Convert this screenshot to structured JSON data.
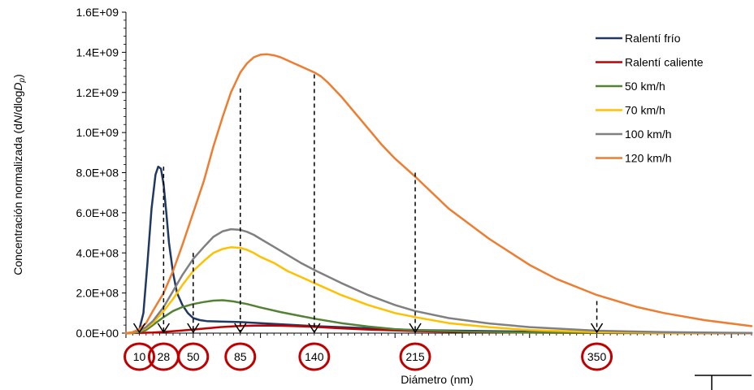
{
  "chart_data": {
    "type": "line",
    "title": "",
    "xlabel": "Diámetro (nm)",
    "ylabel_prefix": "Concentración  normalizada (d",
    "ylabel_N": "N",
    "ylabel_mid": "/dlog",
    "ylabel_D": "D",
    "ylabel_p": "p",
    "ylabel_suffix": ")",
    "ylim": [
      0,
      1600000000
    ],
    "yticks": [
      "0.0E+00",
      "2.0E+08",
      "4.0E+08",
      "6.0E+08",
      "8.0E+08",
      "1.0E+09",
      "1.2E+09",
      "1.4E+09",
      "1.6E+09"
    ],
    "yticks_values": [
      0,
      200000000,
      400000000,
      600000000,
      800000000,
      1000000000,
      1200000000,
      1400000000,
      1600000000
    ],
    "xlim": [
      0,
      465
    ],
    "legend_position": "top-right",
    "series": [
      {
        "name": "Ralentí frío",
        "color": "#203864",
        "x": [
          0,
          4,
          8,
          10,
          13,
          16,
          19,
          22,
          24,
          26,
          28,
          30,
          32,
          35,
          38,
          42,
          46,
          50,
          55,
          60,
          70,
          85,
          100,
          140,
          215,
          350,
          465
        ],
        "y": [
          0,
          1000000,
          5000000,
          20000000,
          100000000,
          350000000,
          620000000,
          790000000,
          830000000,
          820000000,
          740000000,
          600000000,
          450000000,
          300000000,
          200000000,
          140000000,
          100000000,
          75000000,
          65000000,
          60000000,
          58000000,
          55000000,
          50000000,
          35000000,
          15000000,
          3000000,
          1000000
        ]
      },
      {
        "name": "Ralentí caliente",
        "color": "#C00000",
        "x": [
          0,
          10,
          20,
          28,
          40,
          50,
          60,
          70,
          85,
          100,
          115,
          130,
          140,
          160,
          180,
          215,
          260,
          300,
          350,
          465
        ],
        "y": [
          0,
          1000000,
          3000000,
          6000000,
          12000000,
          18000000,
          24000000,
          30000000,
          36000000,
          38000000,
          37000000,
          34000000,
          31000000,
          24000000,
          18000000,
          10000000,
          5000000,
          2500000,
          1000000,
          200000
        ]
      },
      {
        "name": "50 km/h",
        "color": "#548235",
        "x": [
          0,
          5,
          10,
          15,
          20,
          28,
          35,
          42,
          50,
          58,
          65,
          72,
          80,
          90,
          100,
          115,
          130,
          140,
          160,
          180,
          200,
          215,
          250,
          300,
          350,
          465
        ],
        "y": [
          0,
          1000000,
          5000000,
          15000000,
          40000000,
          80000000,
          110000000,
          130000000,
          145000000,
          155000000,
          162000000,
          164000000,
          158000000,
          145000000,
          128000000,
          105000000,
          85000000,
          72000000,
          50000000,
          33000000,
          20000000,
          15000000,
          8000000,
          3000000,
          1500000,
          500000
        ]
      },
      {
        "name": "70 km/h",
        "color": "#FFC000",
        "x": [
          0,
          5,
          10,
          15,
          20,
          28,
          35,
          42,
          50,
          58,
          65,
          72,
          78,
          85,
          90,
          95,
          100,
          110,
          120,
          130,
          140,
          160,
          180,
          200,
          215,
          240,
          270,
          300,
          350,
          400,
          465
        ],
        "y": [
          0,
          2000000,
          10000000,
          25000000,
          50000000,
          110000000,
          170000000,
          240000000,
          310000000,
          360000000,
          400000000,
          420000000,
          428000000,
          425000000,
          415000000,
          400000000,
          380000000,
          350000000,
          310000000,
          280000000,
          250000000,
          190000000,
          140000000,
          100000000,
          80000000,
          50000000,
          30000000,
          15000000,
          5000000,
          2000000,
          500000
        ]
      },
      {
        "name": "100 km/h",
        "color": "#808080",
        "x": [
          0,
          5,
          10,
          15,
          20,
          28,
          35,
          42,
          50,
          58,
          65,
          72,
          78,
          85,
          90,
          95,
          100,
          110,
          120,
          130,
          140,
          160,
          180,
          200,
          215,
          240,
          270,
          300,
          350,
          400,
          465
        ],
        "y": [
          0,
          3000000,
          12000000,
          30000000,
          60000000,
          130000000,
          210000000,
          290000000,
          370000000,
          430000000,
          480000000,
          508000000,
          518000000,
          515000000,
          505000000,
          490000000,
          470000000,
          430000000,
          390000000,
          350000000,
          315000000,
          250000000,
          190000000,
          140000000,
          110000000,
          75000000,
          48000000,
          30000000,
          12000000,
          5000000,
          1000000
        ]
      },
      {
        "name": "120 km/h",
        "color": "#ED7D31",
        "x": [
          0,
          5,
          10,
          15,
          20,
          28,
          35,
          42,
          50,
          58,
          65,
          72,
          78,
          85,
          90,
          95,
          100,
          105,
          110,
          115,
          120,
          125,
          130,
          135,
          140,
          145,
          150,
          160,
          170,
          180,
          190,
          200,
          215,
          240,
          270,
          300,
          320,
          350,
          380,
          400,
          430,
          465
        ],
        "y": [
          0,
          5000000,
          20000000,
          50000000,
          110000000,
          200000000,
          310000000,
          440000000,
          600000000,
          760000000,
          930000000,
          1080000000,
          1200000000,
          1300000000,
          1345000000,
          1375000000,
          1388000000,
          1390000000,
          1385000000,
          1375000000,
          1360000000,
          1345000000,
          1330000000,
          1315000000,
          1300000000,
          1280000000,
          1250000000,
          1180000000,
          1100000000,
          1020000000,
          940000000,
          870000000,
          780000000,
          620000000,
          470000000,
          340000000,
          270000000,
          190000000,
          130000000,
          100000000,
          65000000,
          35000000
        ]
      }
    ],
    "annotations": {
      "markers": [
        {
          "label": "10",
          "x": 10,
          "line_top": 0
        },
        {
          "label": "28",
          "x": 28,
          "line_top": 830000000
        },
        {
          "label": "50",
          "x": 50,
          "line_top": 400000000
        },
        {
          "label": "85",
          "x": 85,
          "line_top": 1220000000
        },
        {
          "label": "140",
          "x": 140,
          "line_top": 1290000000
        },
        {
          "label": "215",
          "x": 215,
          "line_top": 800000000
        },
        {
          "label": "350",
          "x": 350,
          "line_top": 160000000
        }
      ],
      "circle_color": "#C00000"
    }
  }
}
